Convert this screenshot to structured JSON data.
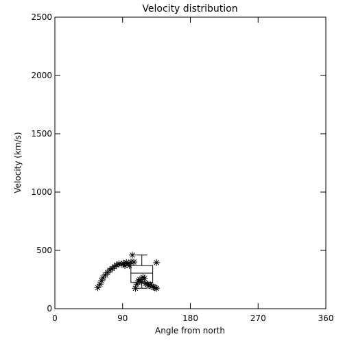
{
  "chart_data": {
    "type": "scatter",
    "title": "Velocity distribution",
    "x_label": "Angle from north",
    "y_label": "Velocity (km/s)",
    "x": [
      57,
      60,
      62,
      64,
      67,
      70,
      73,
      76,
      79,
      82,
      85,
      88,
      91,
      93,
      95,
      97,
      99,
      101,
      103,
      105,
      107,
      109,
      111,
      113,
      115,
      117,
      119,
      121,
      123,
      125,
      127,
      129,
      131,
      133,
      135,
      135
    ],
    "y": [
      180,
      210,
      240,
      265,
      290,
      310,
      330,
      345,
      360,
      375,
      385,
      380,
      390,
      370,
      395,
      385,
      370,
      400,
      460,
      400,
      175,
      210,
      240,
      250,
      230,
      270,
      260,
      215,
      210,
      200,
      205,
      190,
      185,
      180,
      175,
      395
    ],
    "color": "#000000",
    "box": {
      "x_range": [
        101,
        130
      ],
      "min": 175,
      "q1": 225,
      "median": 305,
      "q3": 370,
      "max": 460
    },
    "xlim": [
      0,
      360
    ],
    "xticks": [
      0,
      90,
      180,
      270,
      360
    ],
    "ylim": [
      0,
      2500
    ],
    "yticks": [
      0,
      500,
      1000,
      1500,
      2000,
      2500
    ]
  }
}
